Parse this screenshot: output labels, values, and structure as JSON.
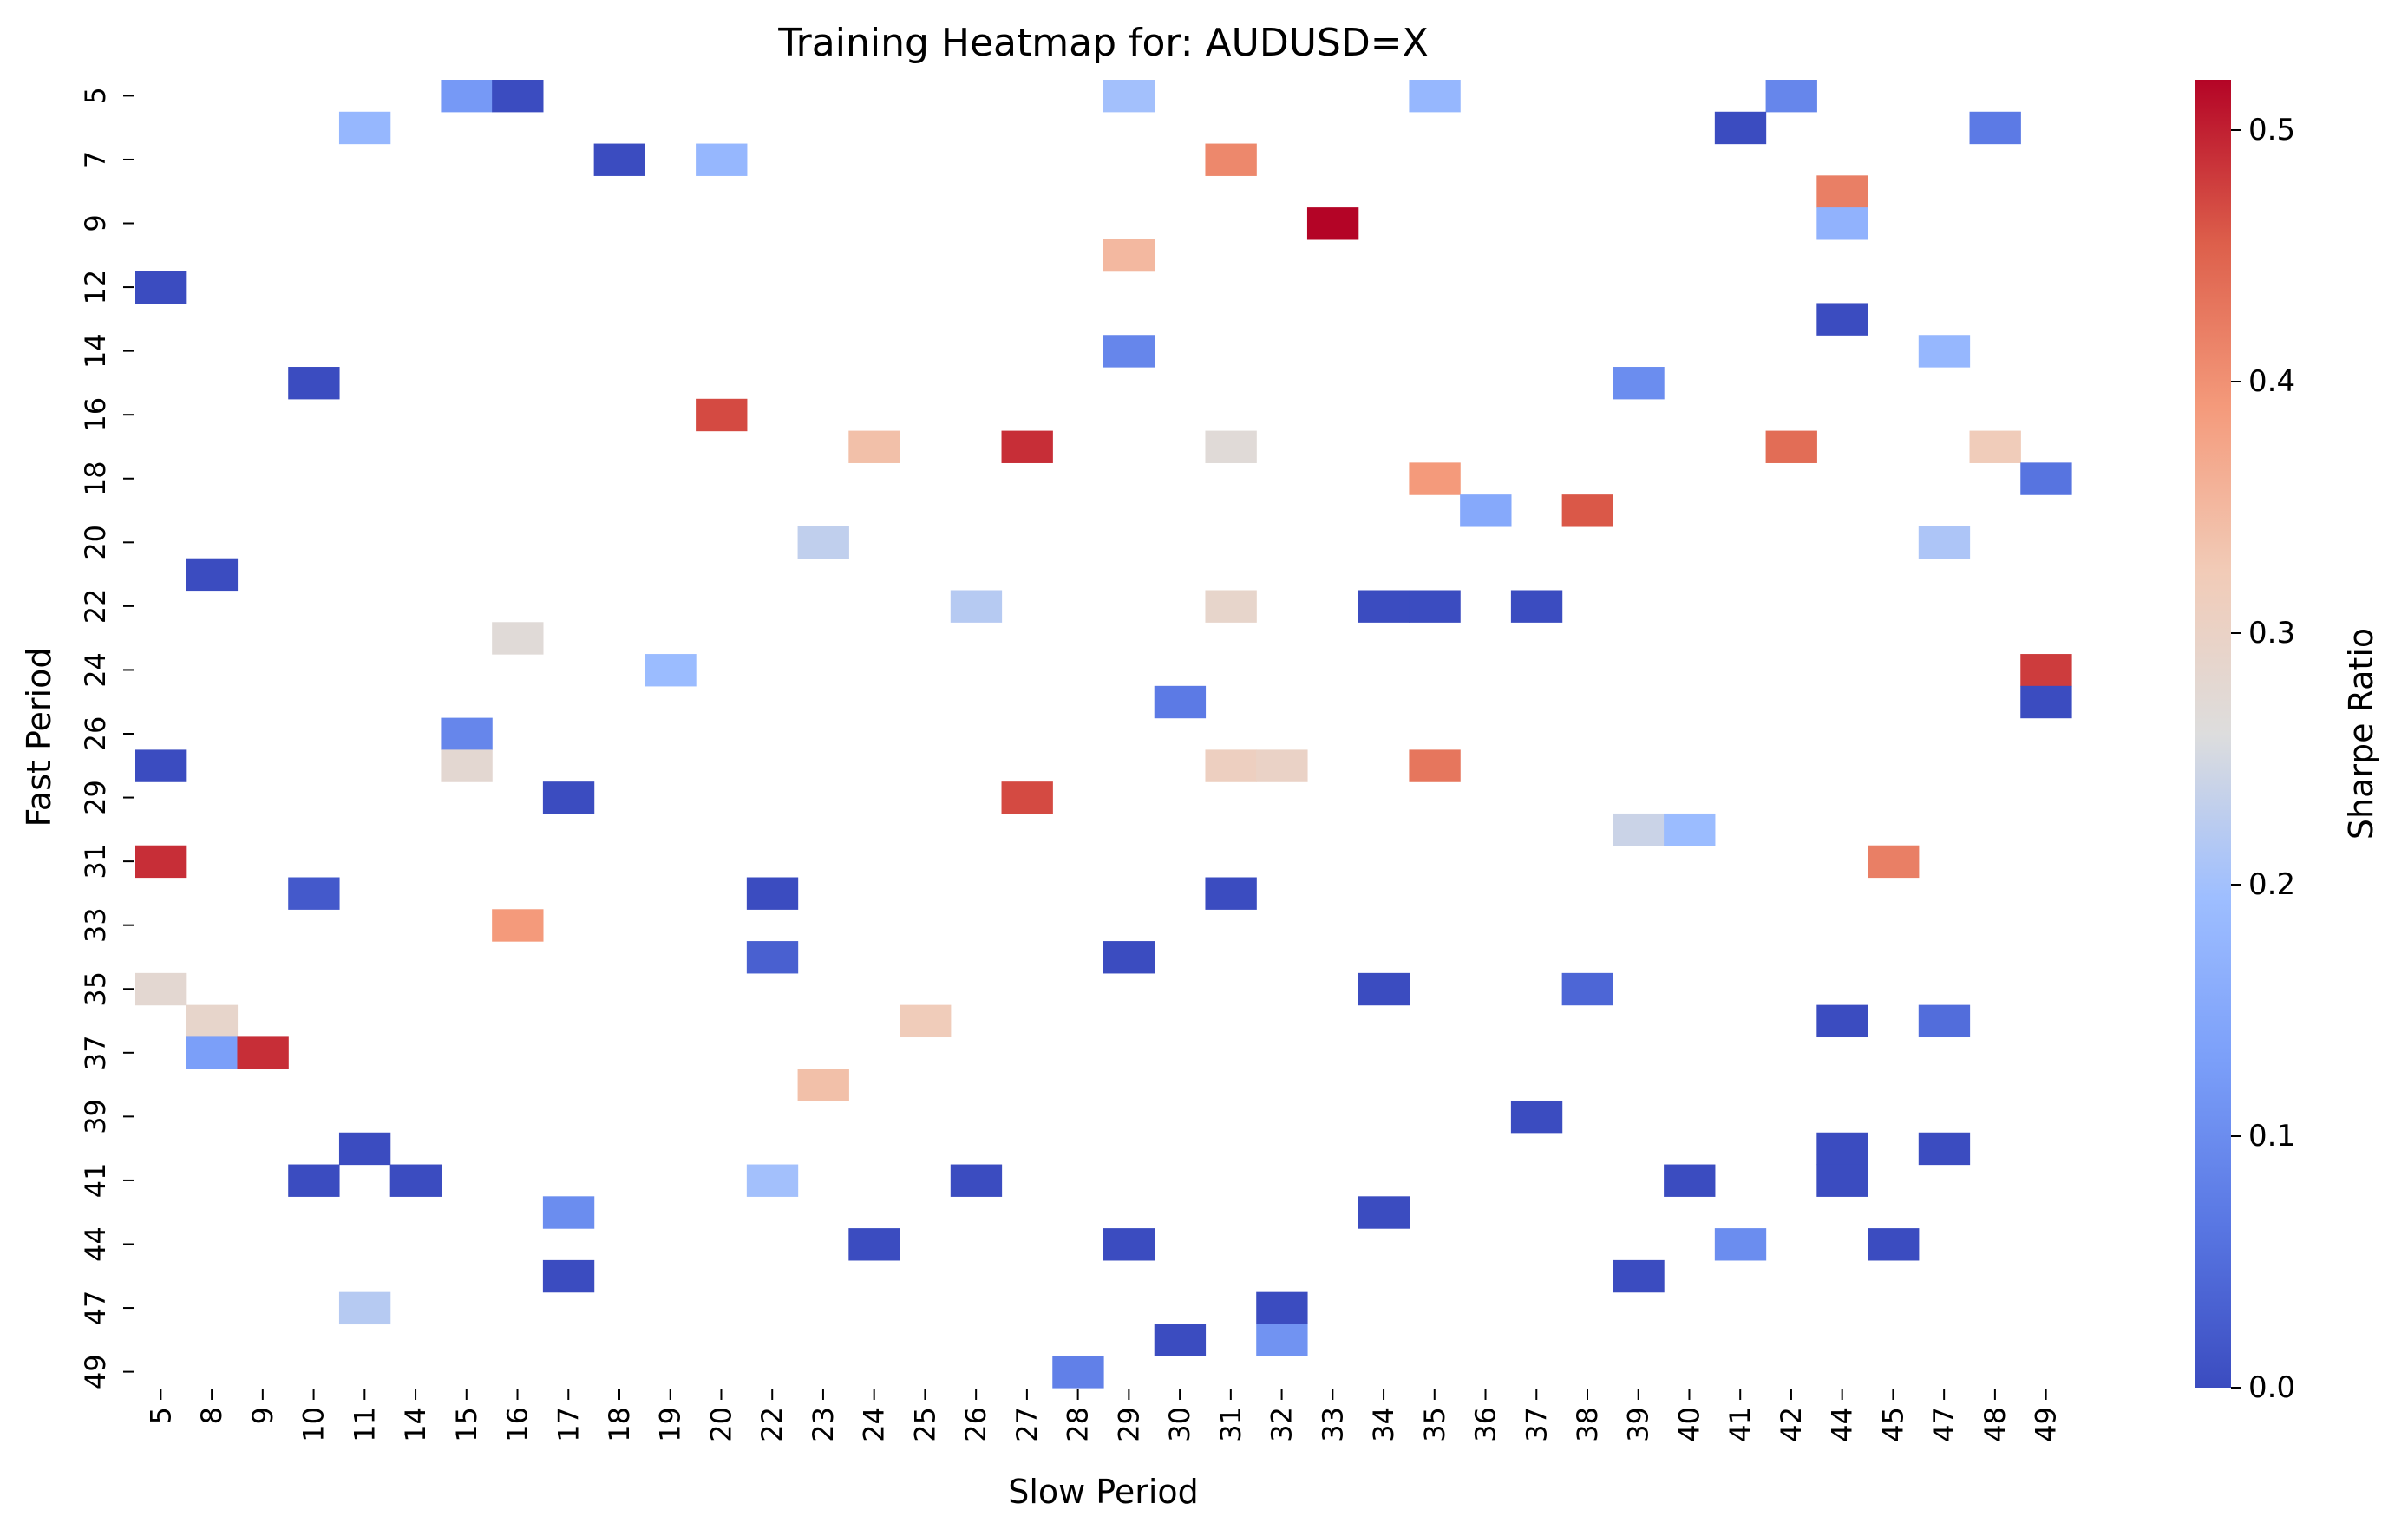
{
  "chart_data": {
    "type": "heatmap",
    "title": "Training Heatmap for: AUDUSD=X",
    "xlabel": "Slow Period",
    "ylabel": "Fast Period",
    "colorbar_label": "Sharpe Ratio",
    "colormap": "coolwarm",
    "vmin": 0.0,
    "vmax": 0.52,
    "colorbar_ticks": [
      "0.0",
      "0.1",
      "0.2",
      "0.3",
      "0.4",
      "0.5"
    ],
    "x_categories": [
      "5",
      "8",
      "9",
      "10",
      "11",
      "14",
      "15",
      "16",
      "17",
      "18",
      "19",
      "20",
      "22",
      "23",
      "24",
      "25",
      "26",
      "27",
      "28",
      "29",
      "30",
      "31",
      "32",
      "33",
      "34",
      "35",
      "36",
      "37",
      "38",
      "39",
      "40",
      "41",
      "42",
      "44",
      "45",
      "47",
      "48",
      "49"
    ],
    "y_rows": [
      "5",
      "6",
      "7",
      "8",
      "9",
      "10",
      "12",
      "13",
      "14",
      "15",
      "16",
      "17",
      "18",
      "19",
      "20",
      "21",
      "22",
      "23",
      "24",
      "25",
      "26",
      "27",
      "29",
      "30",
      "31",
      "32",
      "33",
      "34",
      "35",
      "36",
      "37",
      "38",
      "39",
      "40",
      "41",
      "42",
      "44",
      "45",
      "47",
      "48",
      "49"
    ],
    "y_tick_labels": [
      "5",
      "7",
      "9",
      "12",
      "14",
      "16",
      "18",
      "20",
      "22",
      "24",
      "26",
      "29",
      "31",
      "33",
      "35",
      "37",
      "39",
      "41",
      "44",
      "47",
      "49"
    ],
    "cells": [
      {
        "x": "15",
        "y": "5",
        "v": 0.12
      },
      {
        "x": "16",
        "y": "5",
        "v": 0.0
      },
      {
        "x": "29",
        "y": "5",
        "v": 0.2
      },
      {
        "x": "35",
        "y": "5",
        "v": 0.18
      },
      {
        "x": "42",
        "y": "5",
        "v": 0.09
      },
      {
        "x": "11",
        "y": "6",
        "v": 0.18
      },
      {
        "x": "41",
        "y": "6",
        "v": 0.0
      },
      {
        "x": "48",
        "y": "6",
        "v": 0.07
      },
      {
        "x": "18",
        "y": "7",
        "v": 0.0
      },
      {
        "x": "20",
        "y": "7",
        "v": 0.18
      },
      {
        "x": "31",
        "y": "7",
        "v": 0.41
      },
      {
        "x": "44",
        "y": "8",
        "v": 0.42
      },
      {
        "x": "33",
        "y": "9",
        "v": 0.52
      },
      {
        "x": "44",
        "y": "9",
        "v": 0.17
      },
      {
        "x": "29",
        "y": "10",
        "v": 0.35
      },
      {
        "x": "5",
        "y": "12",
        "v": 0.0
      },
      {
        "x": "44",
        "y": "13",
        "v": 0.0
      },
      {
        "x": "29",
        "y": "14",
        "v": 0.09
      },
      {
        "x": "47",
        "y": "14",
        "v": 0.18
      },
      {
        "x": "10",
        "y": "15",
        "v": 0.0
      },
      {
        "x": "39",
        "y": "15",
        "v": 0.1
      },
      {
        "x": "20",
        "y": "16",
        "v": 0.47
      },
      {
        "x": "24",
        "y": "17",
        "v": 0.34
      },
      {
        "x": "27",
        "y": "17",
        "v": 0.49
      },
      {
        "x": "31",
        "y": "17",
        "v": 0.27
      },
      {
        "x": "42",
        "y": "17",
        "v": 0.44
      },
      {
        "x": "48",
        "y": "17",
        "v": 0.32
      },
      {
        "x": "35",
        "y": "18",
        "v": 0.39
      },
      {
        "x": "49",
        "y": "18",
        "v": 0.06
      },
      {
        "x": "36",
        "y": "19",
        "v": 0.15
      },
      {
        "x": "38",
        "y": "19",
        "v": 0.46
      },
      {
        "x": "23",
        "y": "20",
        "v": 0.23
      },
      {
        "x": "47",
        "y": "20",
        "v": 0.21
      },
      {
        "x": "8",
        "y": "21",
        "v": 0.0
      },
      {
        "x": "26",
        "y": "22",
        "v": 0.22
      },
      {
        "x": "31",
        "y": "22",
        "v": 0.29
      },
      {
        "x": "34",
        "y": "22",
        "v": 0.0
      },
      {
        "x": "35",
        "y": "22",
        "v": 0.0
      },
      {
        "x": "37",
        "y": "22",
        "v": 0.0
      },
      {
        "x": "16",
        "y": "23",
        "v": 0.27
      },
      {
        "x": "19",
        "y": "24",
        "v": 0.19
      },
      {
        "x": "49",
        "y": "24",
        "v": 0.48
      },
      {
        "x": "30",
        "y": "25",
        "v": 0.07
      },
      {
        "x": "49",
        "y": "25",
        "v": 0.0
      },
      {
        "x": "15",
        "y": "26",
        "v": 0.09
      },
      {
        "x": "5",
        "y": "27",
        "v": 0.0
      },
      {
        "x": "15",
        "y": "27",
        "v": 0.28
      },
      {
        "x": "31",
        "y": "27",
        "v": 0.31
      },
      {
        "x": "32",
        "y": "27",
        "v": 0.3
      },
      {
        "x": "35",
        "y": "27",
        "v": 0.43
      },
      {
        "x": "17",
        "y": "29",
        "v": 0.0
      },
      {
        "x": "27",
        "y": "29",
        "v": 0.47
      },
      {
        "x": "39",
        "y": "30",
        "v": 0.24
      },
      {
        "x": "40",
        "y": "30",
        "v": 0.19
      },
      {
        "x": "5",
        "y": "31",
        "v": 0.49
      },
      {
        "x": "45",
        "y": "31",
        "v": 0.42
      },
      {
        "x": "10",
        "y": "32",
        "v": 0.02
      },
      {
        "x": "22",
        "y": "32",
        "v": 0.0
      },
      {
        "x": "31",
        "y": "32",
        "v": 0.0
      },
      {
        "x": "16",
        "y": "33",
        "v": 0.39
      },
      {
        "x": "22",
        "y": "34",
        "v": 0.03
      },
      {
        "x": "29",
        "y": "34",
        "v": 0.0
      },
      {
        "x": "5",
        "y": "35",
        "v": 0.28
      },
      {
        "x": "34",
        "y": "35",
        "v": 0.0
      },
      {
        "x": "38",
        "y": "35",
        "v": 0.04
      },
      {
        "x": "8",
        "y": "36",
        "v": 0.29
      },
      {
        "x": "25",
        "y": "36",
        "v": 0.32
      },
      {
        "x": "44",
        "y": "36",
        "v": 0.0
      },
      {
        "x": "47",
        "y": "36",
        "v": 0.05
      },
      {
        "x": "8",
        "y": "37",
        "v": 0.13
      },
      {
        "x": "9",
        "y": "37",
        "v": 0.49
      },
      {
        "x": "23",
        "y": "38",
        "v": 0.34
      },
      {
        "x": "37",
        "y": "39",
        "v": 0.0
      },
      {
        "x": "11",
        "y": "40",
        "v": 0.0
      },
      {
        "x": "44",
        "y": "40",
        "v": 0.0
      },
      {
        "x": "47",
        "y": "40",
        "v": 0.0
      },
      {
        "x": "10",
        "y": "41",
        "v": 0.0
      },
      {
        "x": "14",
        "y": "41",
        "v": 0.0
      },
      {
        "x": "22",
        "y": "41",
        "v": 0.2
      },
      {
        "x": "26",
        "y": "41",
        "v": 0.0
      },
      {
        "x": "40",
        "y": "41",
        "v": 0.0
      },
      {
        "x": "44",
        "y": "41",
        "v": 0.0
      },
      {
        "x": "17",
        "y": "42",
        "v": 0.1
      },
      {
        "x": "34",
        "y": "42",
        "v": 0.0
      },
      {
        "x": "24",
        "y": "44",
        "v": 0.0
      },
      {
        "x": "29",
        "y": "44",
        "v": 0.0
      },
      {
        "x": "41",
        "y": "44",
        "v": 0.1
      },
      {
        "x": "45",
        "y": "44",
        "v": 0.0
      },
      {
        "x": "17",
        "y": "45",
        "v": 0.0
      },
      {
        "x": "39",
        "y": "45",
        "v": 0.0
      },
      {
        "x": "11",
        "y": "47",
        "v": 0.22
      },
      {
        "x": "32",
        "y": "47",
        "v": 0.0
      },
      {
        "x": "30",
        "y": "48",
        "v": 0.0
      },
      {
        "x": "32",
        "y": "48",
        "v": 0.11
      },
      {
        "x": "28",
        "y": "49",
        "v": 0.08
      }
    ]
  }
}
